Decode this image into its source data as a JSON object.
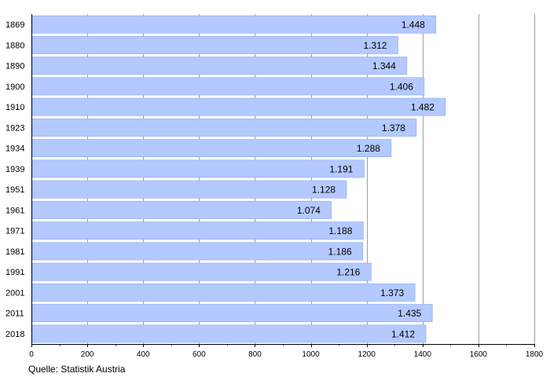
{
  "chart_data": {
    "type": "bar",
    "orientation": "horizontal",
    "categories": [
      "1869",
      "1880",
      "1890",
      "1900",
      "1910",
      "1923",
      "1934",
      "1939",
      "1951",
      "1961",
      "1971",
      "1981",
      "1991",
      "2001",
      "2011",
      "2018"
    ],
    "values": [
      1448,
      1312,
      1344,
      1406,
      1482,
      1378,
      1288,
      1191,
      1128,
      1074,
      1188,
      1186,
      1216,
      1373,
      1435,
      1412
    ],
    "value_labels": [
      "1.448",
      "1.312",
      "1.344",
      "1.406",
      "1.482",
      "1.378",
      "1.288",
      "1.191",
      "1.128",
      "1.074",
      "1.188",
      "1.186",
      "1.216",
      "1.373",
      "1.435",
      "1.412"
    ],
    "xlim": [
      0,
      1800
    ],
    "x_ticks": [
      0,
      200,
      400,
      600,
      800,
      1000,
      1200,
      1400,
      1600,
      1800
    ],
    "x_tick_labels": [
      "0",
      "200",
      "400",
      "600",
      "800",
      "1000",
      "1200",
      "1400",
      "1600",
      "1800"
    ],
    "grid": "vertical",
    "bar_color": "#b3c9ff",
    "bar_edge_color": "#8aa9f5",
    "grid_color": "#a0a0a0",
    "source": "Quelle: Statistik Austria"
  }
}
